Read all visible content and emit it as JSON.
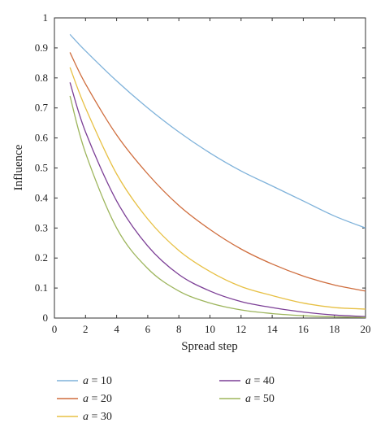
{
  "chart_data": {
    "type": "line",
    "title": "",
    "xlabel": "Spread step",
    "ylabel": "Influence",
    "xlim": [
      0,
      20
    ],
    "ylim": [
      0,
      1
    ],
    "xticks": [
      0,
      2,
      4,
      6,
      8,
      10,
      12,
      14,
      16,
      18,
      20
    ],
    "yticks": [
      0,
      0.1,
      0.2,
      0.3,
      0.4,
      0.5,
      0.6,
      0.7,
      0.8,
      0.9,
      1
    ],
    "grid": false,
    "legend_position": "bottom",
    "x": [
      1,
      2,
      4,
      6,
      8,
      10,
      12,
      14,
      16,
      18,
      20
    ],
    "series": [
      {
        "name": "a = 10",
        "color": "#7fb2da",
        "values": [
          0.945,
          0.89,
          0.79,
          0.7,
          0.62,
          0.55,
          0.49,
          0.44,
          0.39,
          0.34,
          0.3
        ]
      },
      {
        "name": "a = 20",
        "color": "#cf6d3d",
        "values": [
          0.885,
          0.78,
          0.61,
          0.48,
          0.375,
          0.295,
          0.23,
          0.18,
          0.14,
          0.11,
          0.09
        ]
      },
      {
        "name": "a = 30",
        "color": "#e7c044",
        "values": [
          0.835,
          0.7,
          0.48,
          0.33,
          0.225,
          0.155,
          0.105,
          0.075,
          0.05,
          0.035,
          0.03
        ]
      },
      {
        "name": "a = 40",
        "color": "#7c3f96",
        "values": [
          0.785,
          0.62,
          0.39,
          0.24,
          0.145,
          0.09,
          0.055,
          0.035,
          0.02,
          0.01,
          0.005
        ]
      },
      {
        "name": "a = 50",
        "color": "#9db55c",
        "values": [
          0.74,
          0.55,
          0.3,
          0.165,
          0.09,
          0.05,
          0.027,
          0.015,
          0.008,
          0.004,
          0.002
        ]
      }
    ]
  }
}
